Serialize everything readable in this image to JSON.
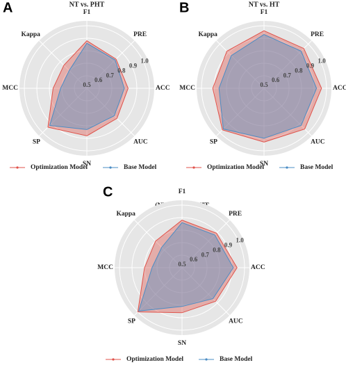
{
  "chart_data": [
    {
      "type": "radar",
      "panel_label": "A",
      "title": "NT vs. PHT",
      "categories": [
        "F1",
        "PRE",
        "ACC",
        "AUC",
        "SN",
        "SP",
        "MCC",
        "Kappa"
      ],
      "rlim": [
        0.5,
        1.0
      ],
      "rticks": [
        0.5,
        0.6,
        0.7,
        0.8,
        0.9,
        {
          "value": 1.0,
          "label": "1.0"
        }
      ],
      "series": [
        {
          "name": "Optimization Model",
          "color": "#e0524a",
          "values": [
            0.88,
            0.83,
            0.83,
            0.84,
            0.88,
            0.94,
            0.77,
            0.76
          ]
        },
        {
          "name": "Base Model",
          "color": "#4a8cc4",
          "values": [
            0.86,
            0.82,
            0.8,
            0.81,
            0.83,
            0.92,
            0.71,
            0.7
          ]
        }
      ]
    },
    {
      "type": "radar",
      "panel_label": "B",
      "title": "NT vs. HT",
      "categories": [
        "F1",
        "PRE",
        "ACC",
        "AUC",
        "SN",
        "SP",
        "MCC",
        "Kappa"
      ],
      "rlim": [
        0.5,
        1.0
      ],
      "rticks": [
        0.5,
        0.6,
        0.7,
        0.8,
        0.9,
        {
          "value": 1.0,
          "label": "1.0"
        }
      ],
      "series": [
        {
          "name": "Optimization Model",
          "color": "#e0524a",
          "values": [
            0.96,
            0.95,
            0.96,
            0.96,
            0.93,
            0.97,
            0.91,
            0.92
          ]
        },
        {
          "name": "Base Model",
          "color": "#4a8cc4",
          "values": [
            0.93,
            0.92,
            0.92,
            0.92,
            0.9,
            0.96,
            0.86,
            0.87
          ]
        }
      ]
    },
    {
      "type": "radar",
      "panel_label": "C",
      "title": "(NT+PHT) vs. HT",
      "categories": [
        "F1",
        "PRE",
        "ACC",
        "AUC",
        "SN",
        "SP",
        "MCC",
        "Kappa"
      ],
      "rlim": [
        0.5,
        1.0
      ],
      "rticks": [
        0.5,
        0.6,
        0.7,
        0.8,
        0.9,
        {
          "value": 1.0,
          "label": "1.0"
        }
      ],
      "series": [
        {
          "name": "Optimization Model",
          "color": "#e0524a",
          "values": [
            0.88,
            0.89,
            0.94,
            0.88,
            0.86,
            1.0,
            0.8,
            0.8
          ]
        },
        {
          "name": "Base Model",
          "color": "#4a8cc4",
          "values": [
            0.86,
            0.87,
            0.91,
            0.85,
            0.81,
            0.99,
            0.74,
            0.73
          ]
        }
      ]
    }
  ]
}
